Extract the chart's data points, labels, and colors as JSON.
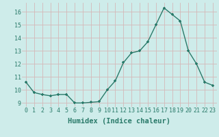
{
  "x": [
    0,
    1,
    2,
    3,
    4,
    5,
    6,
    7,
    8,
    9,
    10,
    11,
    12,
    13,
    14,
    15,
    16,
    17,
    18,
    19,
    20,
    21,
    22,
    23
  ],
  "y": [
    10.6,
    9.8,
    9.65,
    9.55,
    9.65,
    9.65,
    9.0,
    9.0,
    9.05,
    9.1,
    10.0,
    10.7,
    12.1,
    12.85,
    13.0,
    13.7,
    15.0,
    16.3,
    15.8,
    15.3,
    13.0,
    12.0,
    10.6,
    10.35
  ],
  "xlabel": "Humidex (Indice chaleur)",
  "ylim": [
    8.7,
    16.7
  ],
  "xlim": [
    -0.5,
    23.5
  ],
  "yticks": [
    9,
    10,
    11,
    12,
    13,
    14,
    15,
    16
  ],
  "line_color": "#2a7a6a",
  "bg_color": "#ceecea",
  "grid_color": "#d4b8b8",
  "tick_color": "#2a7a6a",
  "label_color": "#2a7a6a",
  "xlabel_fontsize": 7.5,
  "tick_fontsize": 6.0
}
